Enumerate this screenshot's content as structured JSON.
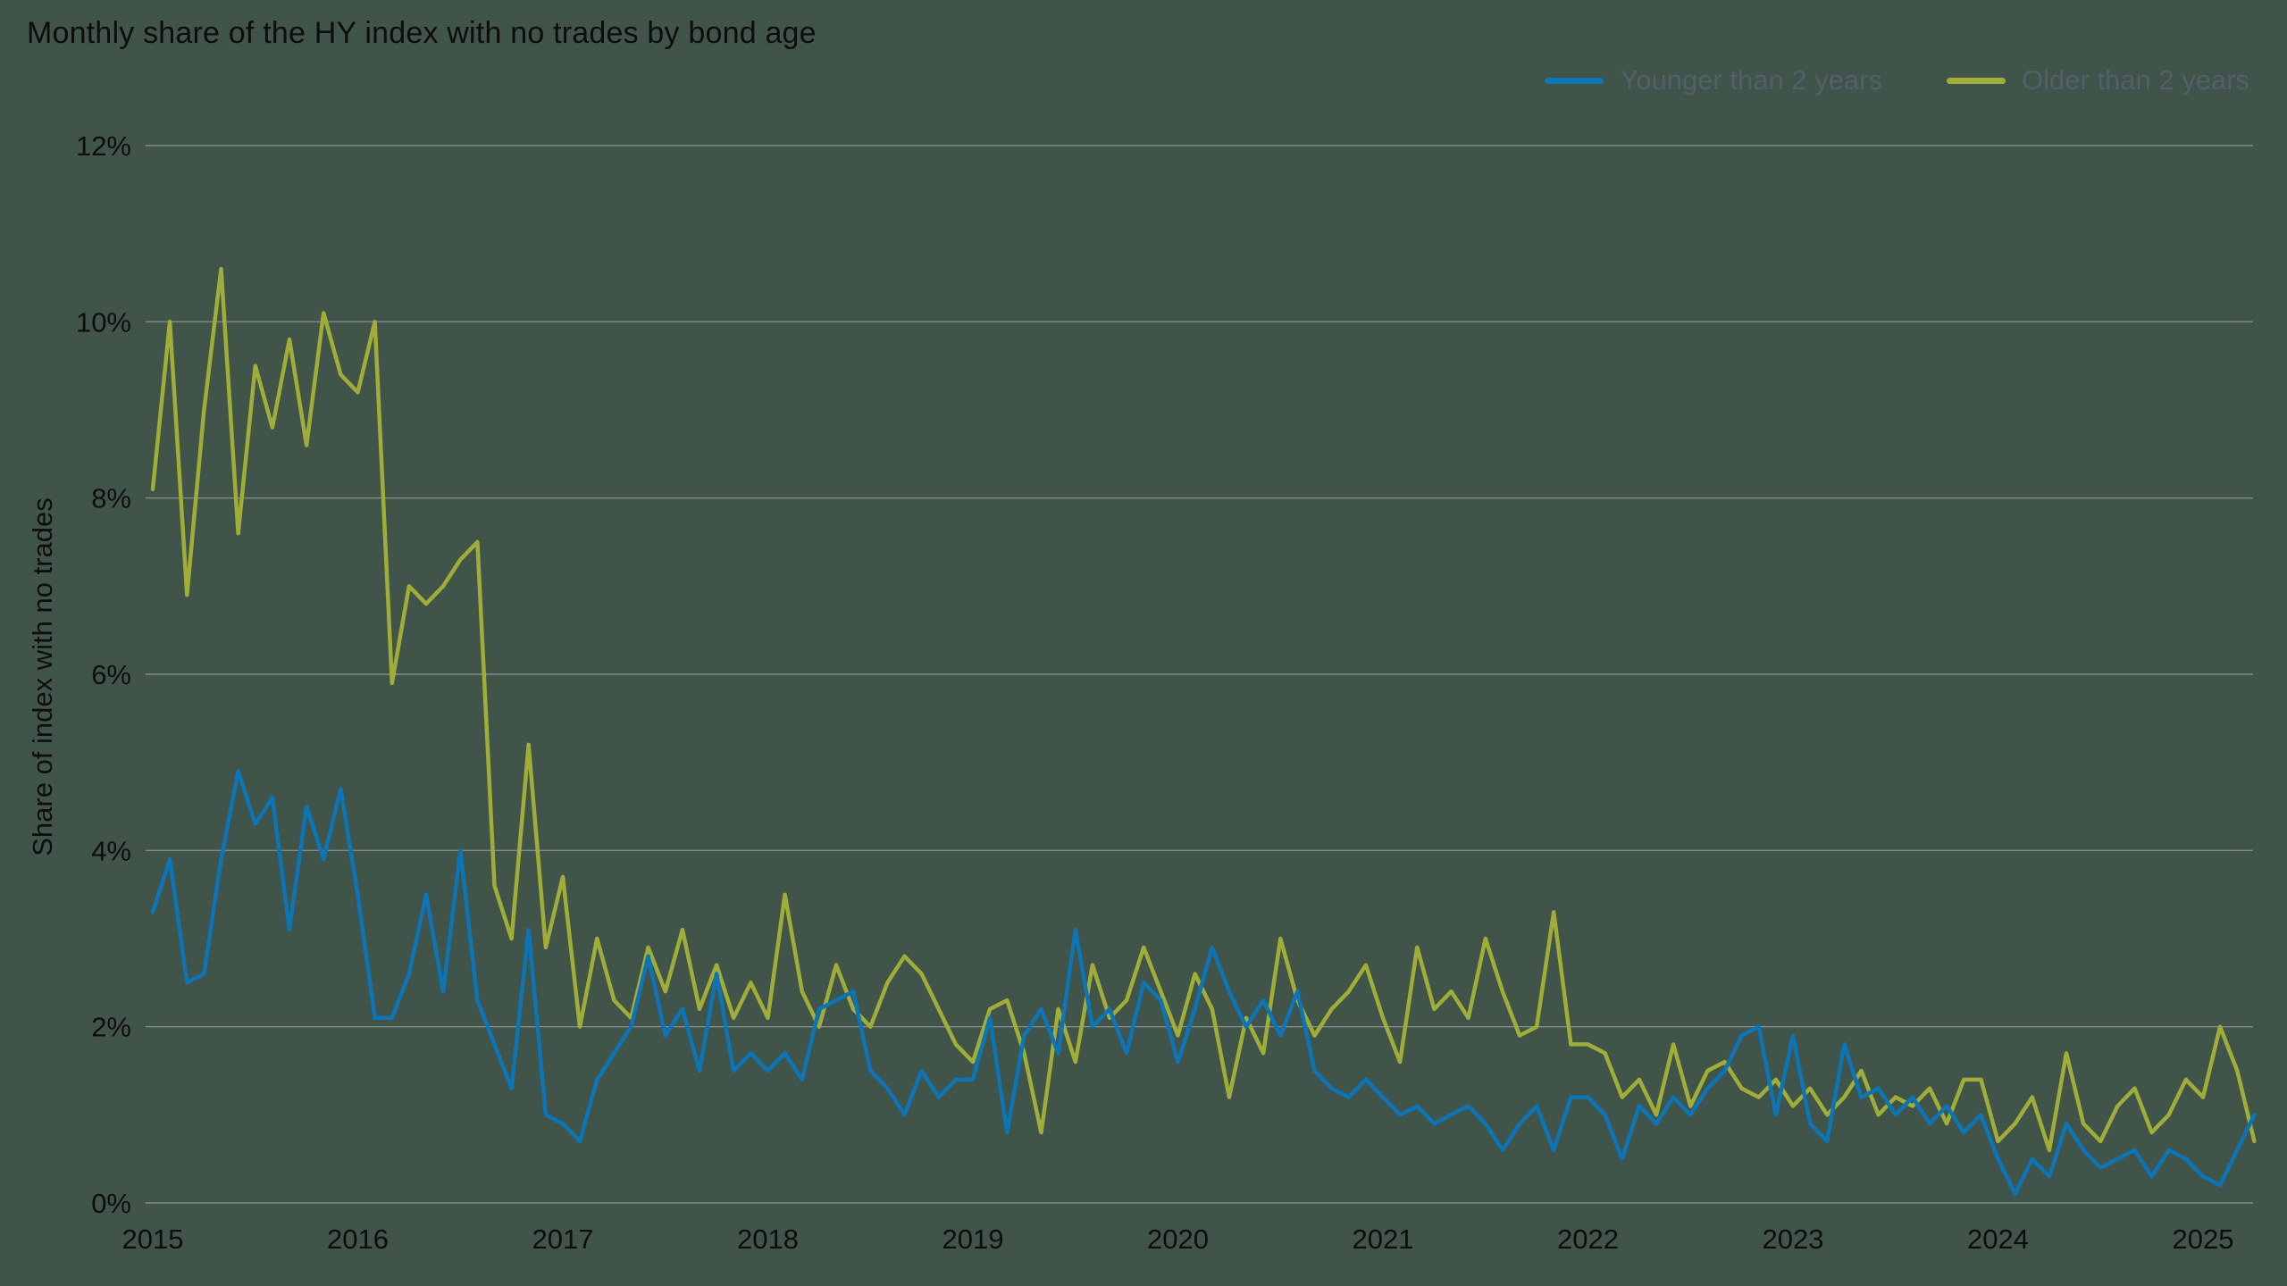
{
  "title": "Monthly share of the HY index with no trades by bond age",
  "colors": {
    "background": "#41544a",
    "grid": "#848b90",
    "text": "#0d0d0d",
    "legend_text": "#51606b",
    "younger_line": "#0d74b5",
    "older_line": "#a0ad39"
  },
  "chart_data": {
    "type": "line",
    "title": "Monthly share of the HY index with no trades by bond age",
    "xlabel": "",
    "ylabel": "Share of index with no trades",
    "ylim": [
      0,
      12
    ],
    "yticks": [
      0,
      2,
      4,
      6,
      8,
      10,
      12
    ],
    "ytick_suffix": "%",
    "xticks": [
      2015,
      2016,
      2017,
      2018,
      2019,
      2020,
      2021,
      2022,
      2023,
      2024,
      2025
    ],
    "x_start": 2015.0,
    "x_frequency": "monthly",
    "grid": true,
    "legend_position": "top-right",
    "series": [
      {
        "name": "Younger than 2 years",
        "color": "#0d74b5",
        "values": [
          3.3,
          3.9,
          2.5,
          2.6,
          3.9,
          4.9,
          4.3,
          4.6,
          3.1,
          4.5,
          3.9,
          4.7,
          3.5,
          2.1,
          2.1,
          2.6,
          3.5,
          2.4,
          4.0,
          2.3,
          1.8,
          1.3,
          3.1,
          1.0,
          0.9,
          0.7,
          1.4,
          1.7,
          2.0,
          2.8,
          1.9,
          2.2,
          1.5,
          2.6,
          1.5,
          1.7,
          1.5,
          1.7,
          1.4,
          2.2,
          2.3,
          2.4,
          1.5,
          1.3,
          1.0,
          1.5,
          1.2,
          1.4,
          1.4,
          2.1,
          0.8,
          1.9,
          2.2,
          1.7,
          3.1,
          2.0,
          2.2,
          1.7,
          2.5,
          2.3,
          1.6,
          2.2,
          2.9,
          2.4,
          2.0,
          2.3,
          1.9,
          2.4,
          1.5,
          1.3,
          1.2,
          1.4,
          1.2,
          1.0,
          1.1,
          0.9,
          1.0,
          1.1,
          0.9,
          0.6,
          0.9,
          1.1,
          0.6,
          1.2,
          1.2,
          1.0,
          0.5,
          1.1,
          0.9,
          1.2,
          1.0,
          1.3,
          1.5,
          1.9,
          2.0,
          1.0,
          1.9,
          0.9,
          0.7,
          1.8,
          1.2,
          1.3,
          1.0,
          1.2,
          0.9,
          1.1,
          0.8,
          1.0,
          0.5,
          0.1,
          0.5,
          0.3,
          0.9,
          0.6,
          0.4,
          0.5,
          0.6,
          0.3,
          0.6,
          0.5,
          0.3,
          0.2,
          0.6,
          1.0
        ]
      },
      {
        "name": "Older than 2 years",
        "color": "#a0ad39",
        "values": [
          8.1,
          10.0,
          6.9,
          9.0,
          10.6,
          7.6,
          9.5,
          8.8,
          9.8,
          8.6,
          10.1,
          9.4,
          9.2,
          10.0,
          5.9,
          7.0,
          6.8,
          7.0,
          7.3,
          7.5,
          3.6,
          3.0,
          5.2,
          2.9,
          3.7,
          2.0,
          3.0,
          2.3,
          2.1,
          2.9,
          2.4,
          3.1,
          2.2,
          2.7,
          2.1,
          2.5,
          2.1,
          3.5,
          2.4,
          2.0,
          2.7,
          2.2,
          2.0,
          2.5,
          2.8,
          2.6,
          2.2,
          1.8,
          1.6,
          2.2,
          2.3,
          1.7,
          0.8,
          2.2,
          1.6,
          2.7,
          2.1,
          2.3,
          2.9,
          2.4,
          1.9,
          2.6,
          2.2,
          1.2,
          2.1,
          1.7,
          3.0,
          2.3,
          1.9,
          2.2,
          2.4,
          2.7,
          2.1,
          1.6,
          2.9,
          2.2,
          2.4,
          2.1,
          3.0,
          2.4,
          1.9,
          2.0,
          3.3,
          1.8,
          1.8,
          1.7,
          1.2,
          1.4,
          1.0,
          1.8,
          1.1,
          1.5,
          1.6,
          1.3,
          1.2,
          1.4,
          1.1,
          1.3,
          1.0,
          1.2,
          1.5,
          1.0,
          1.2,
          1.1,
          1.3,
          0.9,
          1.4,
          1.4,
          0.7,
          0.9,
          1.2,
          0.6,
          1.7,
          0.9,
          0.7,
          1.1,
          1.3,
          0.8,
          1.0,
          1.4,
          1.2,
          2.0,
          1.5,
          0.7
        ]
      }
    ]
  }
}
